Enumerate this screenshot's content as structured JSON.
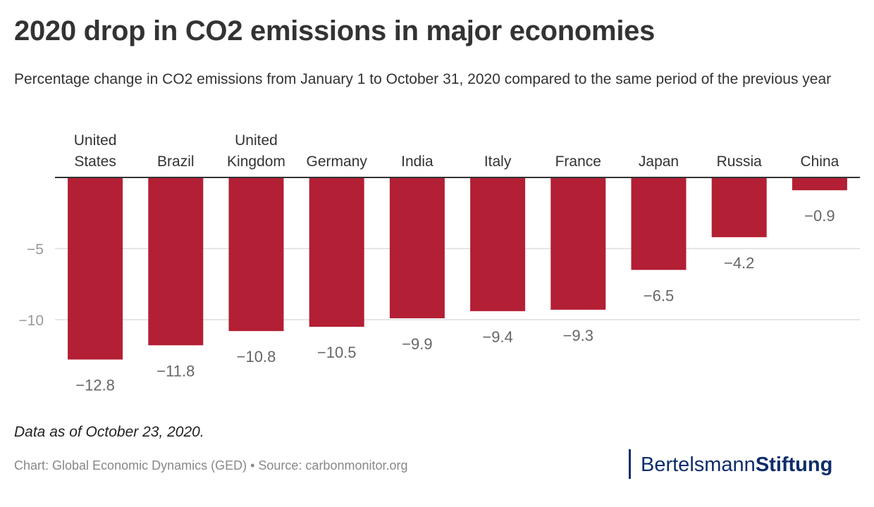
{
  "title": "2020 drop in CO2 emissions in major economies",
  "subtitle": "Percentage change in CO2 emissions from January 1 to October 31, 2020 compared to the same period of the previous year",
  "note": "Data as of October 23, 2020.",
  "source": "Chart: Global Economic Dynamics (GED) • Source: carbonmonitor.org",
  "logo": {
    "part1": "Bertelsmann",
    "part2": "Stiftung"
  },
  "colors": {
    "bar": "#b31f34",
    "text": "#333333",
    "axis": "#999999",
    "grid": "#dddddd"
  },
  "chart_data": {
    "type": "bar",
    "categories": [
      "United States",
      "Brazil",
      "United Kingdom",
      "Germany",
      "India",
      "Italy",
      "France",
      "Japan",
      "Russia",
      "China"
    ],
    "category_lines": [
      [
        "United",
        "States"
      ],
      [
        "Brazil"
      ],
      [
        "United",
        "Kingdom"
      ],
      [
        "Germany"
      ],
      [
        "India"
      ],
      [
        "Italy"
      ],
      [
        "France"
      ],
      [
        "Japan"
      ],
      [
        "Russia"
      ],
      [
        "China"
      ]
    ],
    "values": [
      -12.8,
      -11.8,
      -10.8,
      -10.5,
      -9.9,
      -9.4,
      -9.3,
      -6.5,
      -4.2,
      -0.9
    ],
    "value_labels": [
      "−12.8",
      "−11.8",
      "−10.8",
      "−10.5",
      "−9.9",
      "−9.4",
      "−9.3",
      "−6.5",
      "−4.2",
      "−0.9"
    ],
    "ylim": [
      -14,
      0
    ],
    "yticks": [
      -5,
      -10
    ],
    "ytick_labels": [
      "−5",
      "−10"
    ],
    "grid": true,
    "xlabel": "",
    "ylabel": ""
  }
}
